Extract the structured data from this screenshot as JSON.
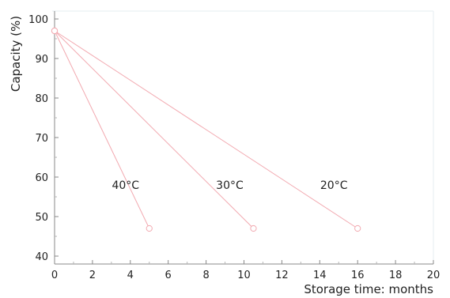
{
  "chart_data": {
    "type": "line",
    "xlabel": "Storage time: months",
    "ylabel": "Capacity (%)",
    "xlim": [
      0,
      20
    ],
    "ylim": [
      38,
      102
    ],
    "xticks": [
      0,
      2,
      4,
      6,
      8,
      10,
      12,
      14,
      16,
      18,
      20
    ],
    "yticks": [
      40,
      50,
      60,
      70,
      80,
      90,
      100
    ],
    "grid": false,
    "series": [
      {
        "name": "40°C",
        "x": [
          0,
          5
        ],
        "y": [
          97,
          47
        ]
      },
      {
        "name": "30°C",
        "x": [
          0,
          10.5
        ],
        "y": [
          97,
          47
        ]
      },
      {
        "name": "20°C",
        "x": [
          0,
          16
        ],
        "y": [
          97,
          47
        ]
      }
    ],
    "line_color": "#f2a9b0"
  }
}
